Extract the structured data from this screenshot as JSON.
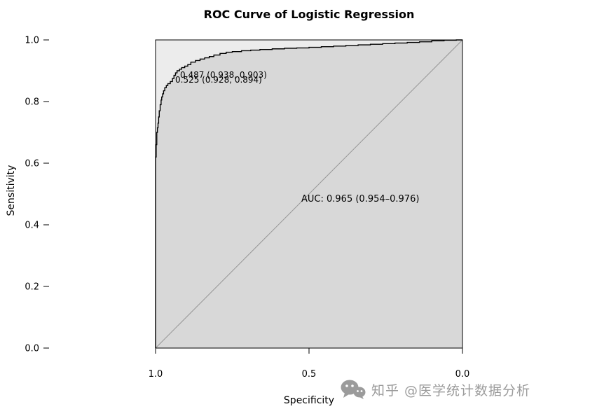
{
  "page": {
    "background": "#ffffff"
  },
  "chart_data": {
    "type": "line",
    "subtype": "roc-curve",
    "title": "ROC Curve of Logistic Regression",
    "xlabel": "Specificity",
    "ylabel": "Sensitivity",
    "x_axis": {
      "ticks": [
        "1.0",
        "0.5",
        "0.0"
      ],
      "reversed": true,
      "range": [
        1.0,
        0.0
      ]
    },
    "y_axis": {
      "ticks": [
        "1.0",
        "0.8",
        "0.6",
        "0.4",
        "0.2",
        "0.0"
      ],
      "range": [
        0.0,
        1.0
      ]
    },
    "auc_label": "AUC: 0.965 (0.954–0.976)",
    "threshold_labels": [
      "0.487 (0.938, 0.903)",
      "0.525 (0.928, 0.894)"
    ],
    "diagonal_reference": true,
    "legend": "none",
    "grid": false,
    "colors": {
      "panel_fill": "#ececec",
      "auc_fill": "#d8d8d8",
      "curve": "#000000",
      "diagonal": "#969696",
      "border": "#000000"
    },
    "series": [
      {
        "name": "ROC curve (logistic regression)",
        "points": [
          [
            1.0,
            0.0
          ],
          [
            1.0,
            0.57
          ],
          [
            0.998,
            0.62
          ],
          [
            0.996,
            0.66
          ],
          [
            0.994,
            0.7
          ],
          [
            0.992,
            0.715
          ],
          [
            0.99,
            0.73
          ],
          [
            0.988,
            0.75
          ],
          [
            0.985,
            0.77
          ],
          [
            0.982,
            0.79
          ],
          [
            0.98,
            0.805
          ],
          [
            0.977,
            0.815
          ],
          [
            0.974,
            0.825
          ],
          [
            0.97,
            0.835
          ],
          [
            0.965,
            0.845
          ],
          [
            0.96,
            0.852
          ],
          [
            0.952,
            0.858
          ],
          [
            0.945,
            0.865
          ],
          [
            0.94,
            0.875
          ],
          [
            0.935,
            0.885
          ],
          [
            0.93,
            0.893
          ],
          [
            0.922,
            0.9
          ],
          [
            0.915,
            0.905
          ],
          [
            0.905,
            0.91
          ],
          [
            0.895,
            0.915
          ],
          [
            0.885,
            0.92
          ],
          [
            0.87,
            0.928
          ],
          [
            0.855,
            0.933
          ],
          [
            0.84,
            0.938
          ],
          [
            0.825,
            0.942
          ],
          [
            0.81,
            0.946
          ],
          [
            0.79,
            0.951
          ],
          [
            0.77,
            0.956
          ],
          [
            0.75,
            0.96
          ],
          [
            0.72,
            0.962
          ],
          [
            0.69,
            0.965
          ],
          [
            0.66,
            0.967
          ],
          [
            0.62,
            0.969
          ],
          [
            0.58,
            0.971
          ],
          [
            0.54,
            0.973
          ],
          [
            0.5,
            0.974
          ],
          [
            0.46,
            0.976
          ],
          [
            0.42,
            0.978
          ],
          [
            0.38,
            0.98
          ],
          [
            0.34,
            0.982
          ],
          [
            0.3,
            0.984
          ],
          [
            0.26,
            0.986
          ],
          [
            0.22,
            0.988
          ],
          [
            0.18,
            0.99
          ],
          [
            0.14,
            0.992
          ],
          [
            0.1,
            0.994
          ],
          [
            0.06,
            0.997
          ],
          [
            0.02,
            0.999
          ],
          [
            0.0,
            1.0
          ]
        ]
      }
    ]
  },
  "watermark": {
    "text": "知乎 @医学统计数据分析",
    "icon": "wechat-bubbles-icon",
    "color": "#9b9b9b"
  }
}
